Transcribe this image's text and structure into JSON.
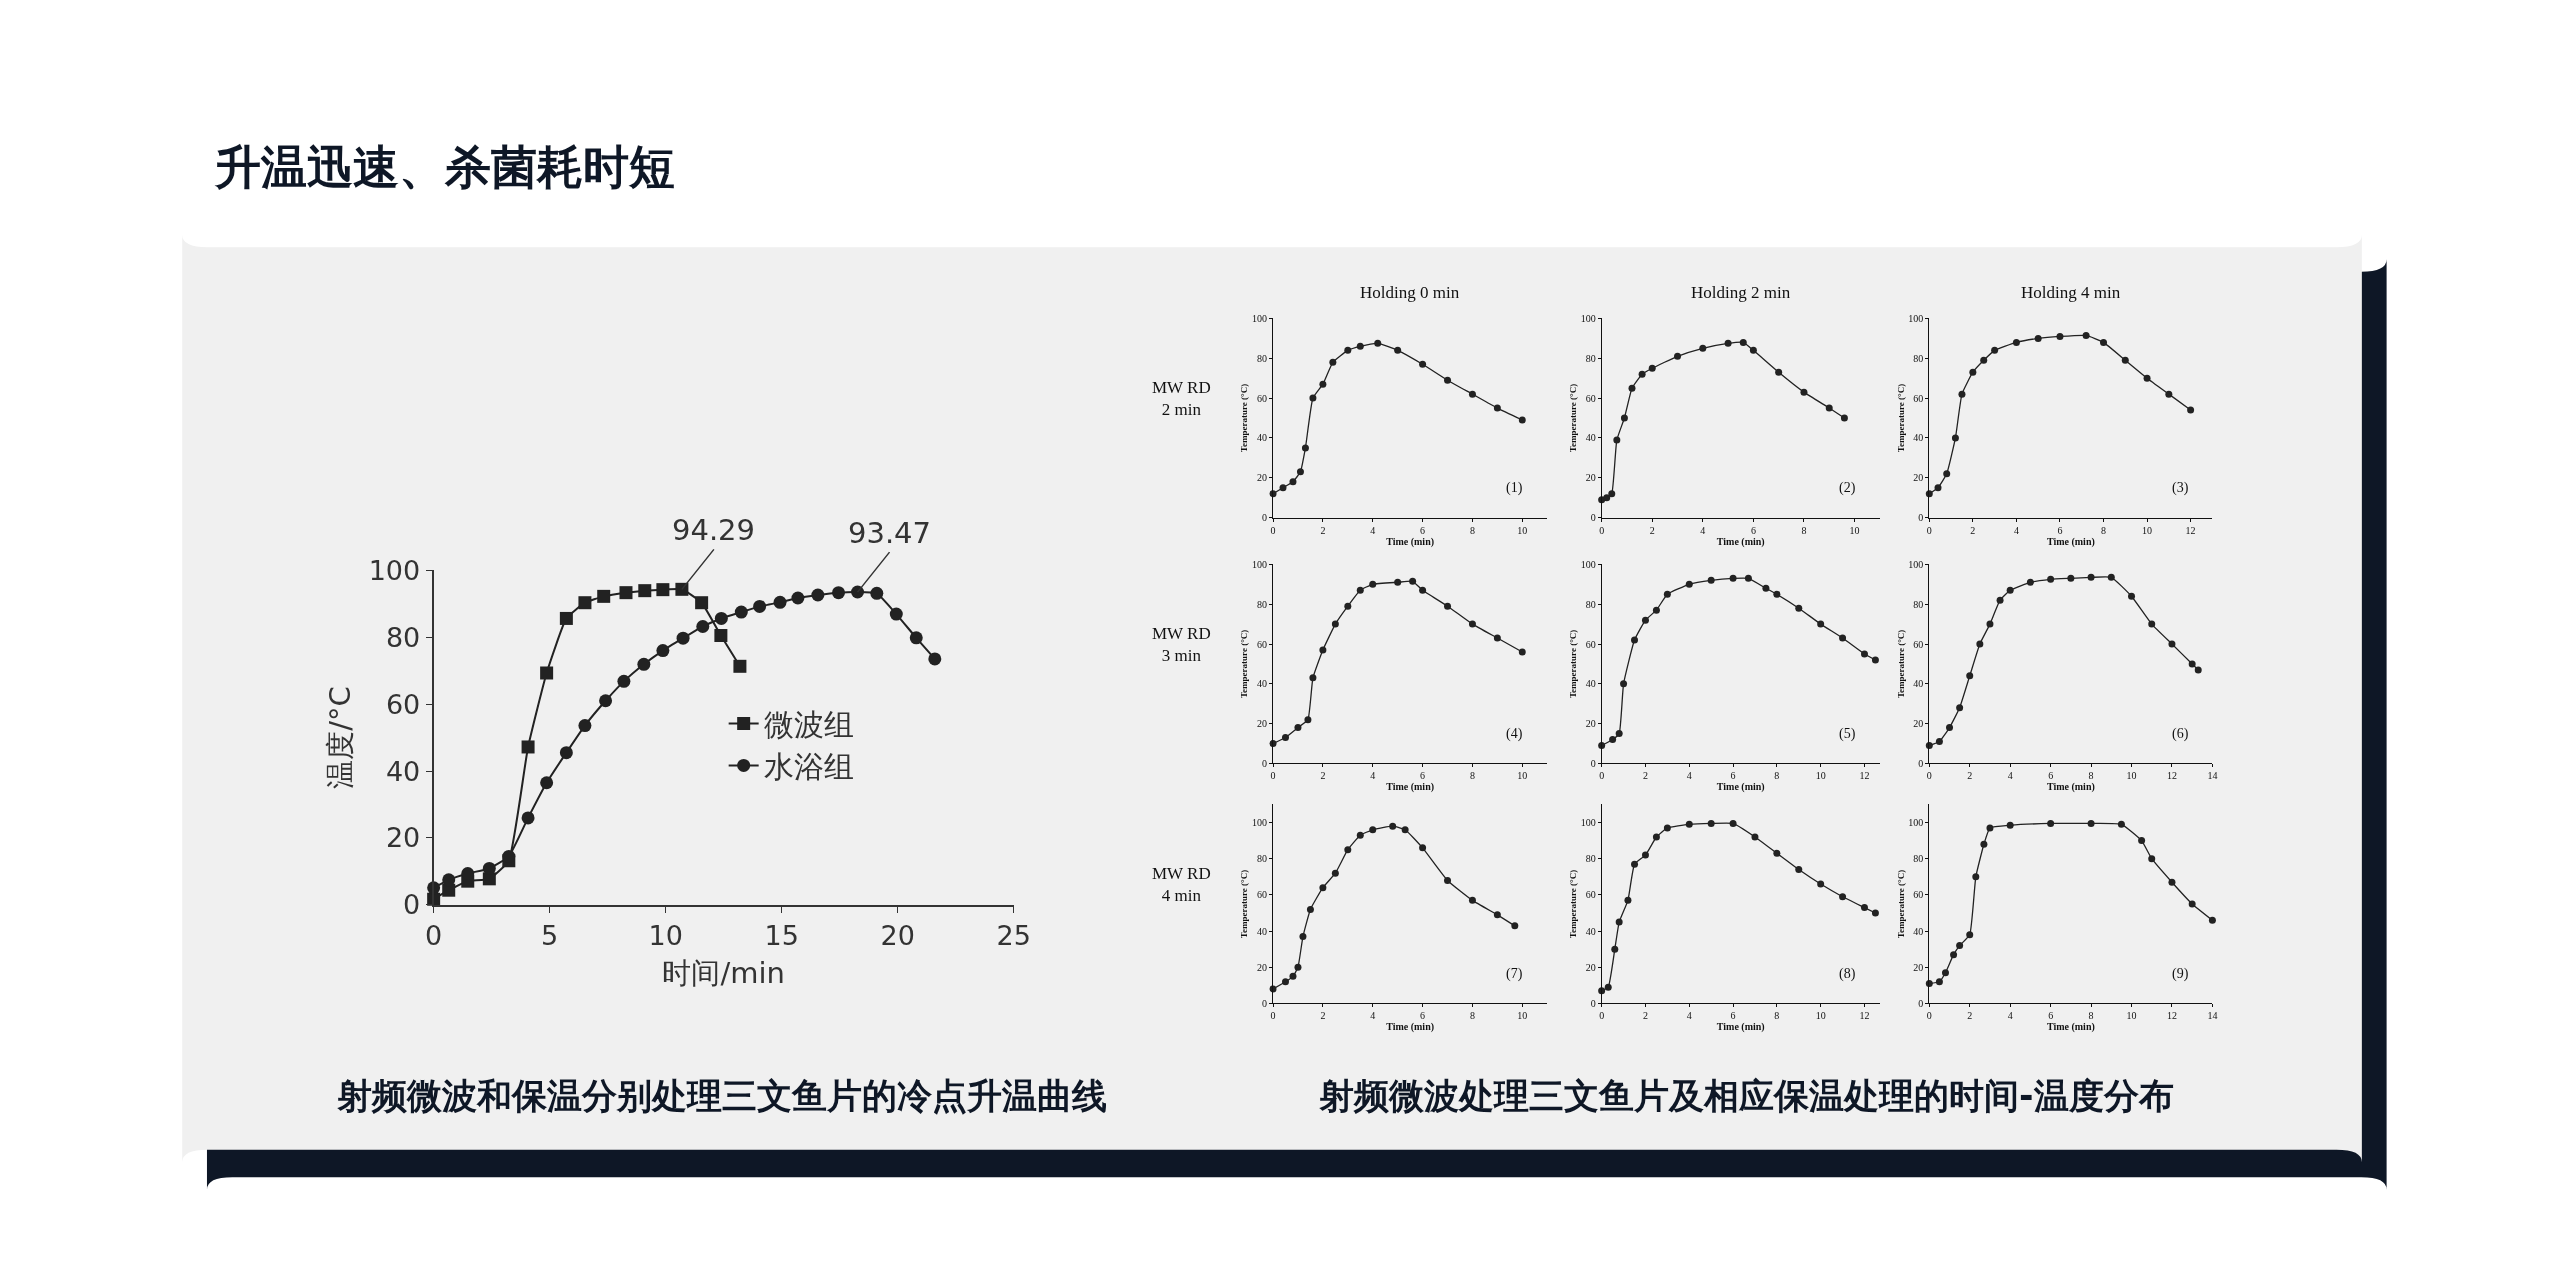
{
  "chart_data": [
    {
      "type": "line",
      "title": "升温迅速、杀菌耗时短",
      "xlabel": "时间/min",
      "ylabel": "温度/°C",
      "xlim": [
        0,
        25
      ],
      "ylim": [
        0,
        100
      ],
      "xticks": [
        0,
        5,
        10,
        15,
        20,
        25
      ],
      "yticks": [
        0,
        20,
        40,
        60,
        80,
        100
      ],
      "legend": "right",
      "annotations": [
        {
          "text": "94.29",
          "x": 10.7,
          "y": 94.29
        },
        {
          "text": "93.47",
          "x": 18.27,
          "y": 93.47
        },
        "射频微波和保温分别处理三文鱼片的冷点升温曲线"
      ],
      "series": [
        {
          "name": "微波组",
          "color": "#222222",
          "marker": "square",
          "x": [
            0,
            0.65,
            1.47,
            2.4,
            3.24,
            4.07,
            4.87,
            5.72,
            6.52,
            7.33,
            8.29,
            9.1,
            9.88,
            10.7,
            11.55,
            12.38,
            13.2
          ],
          "values": [
            1.7,
            4.4,
            7.1,
            7.8,
            13.2,
            47.2,
            69.3,
            85.6,
            90.3,
            92.2,
            93.3,
            93.9,
            94.2,
            94.3,
            90.3,
            80.5,
            71.3
          ]
        },
        {
          "name": "水浴组",
          "color": "#222222",
          "marker": "circle",
          "x": [
            0,
            0.65,
            1.47,
            2.4,
            3.24,
            4.07,
            4.87,
            5.72,
            6.52,
            7.41,
            8.2,
            9.06,
            9.88,
            10.75,
            11.6,
            12.4,
            13.26,
            14.05,
            14.93,
            15.7,
            16.56,
            17.45,
            18.27,
            19.1,
            19.94,
            20.8,
            21.6
          ],
          "values": [
            5.1,
            7.5,
            9.4,
            10.9,
            14.5,
            26,
            36.5,
            45.5,
            53.6,
            61,
            66.8,
            71.9,
            76,
            79.7,
            83.2,
            85.6,
            87.5,
            89.2,
            90.4,
            91.7,
            92.6,
            93.3,
            93.5,
            93.1,
            86.9,
            79.8,
            73.5
          ]
        }
      ]
    },
    {
      "type": "line",
      "title": "Holding 0 min",
      "xlabel": "Time (min)",
      "ylabel": "Temperature (°C)",
      "xlim": [
        0,
        11
      ],
      "ylim": [
        0,
        100
      ],
      "xticks": [
        0,
        2,
        4,
        6,
        8,
        10
      ],
      "yticks": [
        0,
        20,
        40,
        60,
        80,
        100
      ],
      "marker": "circle",
      "color": "#222222",
      "annotations": [
        "(1)",
        "MW RD\n2 min"
      ],
      "x": [
        0,
        0.4,
        0.8,
        1.1,
        1.3,
        1.6,
        2,
        2.4,
        3,
        3.5,
        4.2,
        5,
        6,
        7,
        8,
        9,
        10
      ],
      "values": [
        12,
        15,
        18,
        23,
        35,
        60,
        67,
        78,
        84,
        86,
        87.5,
        84,
        77,
        69,
        62,
        55,
        49
      ]
    },
    {
      "type": "line",
      "title": "Holding 2 min",
      "xlabel": "Time (min)",
      "ylabel": "Temperature (°C)",
      "xlim": [
        0,
        11
      ],
      "ylim": [
        0,
        100
      ],
      "xticks": [
        0,
        2,
        4,
        6,
        8,
        10
      ],
      "yticks": [
        0,
        20,
        40,
        60,
        80,
        100
      ],
      "marker": "circle",
      "color": "#222222",
      "annotations": [
        "(2)"
      ],
      "x": [
        0,
        0.2,
        0.4,
        0.6,
        0.9,
        1.2,
        1.6,
        2,
        3,
        4,
        5,
        5.6,
        6,
        7,
        8,
        9,
        9.6
      ],
      "values": [
        9,
        10,
        12,
        39,
        50,
        65,
        72,
        75,
        81,
        85,
        87.5,
        88,
        84,
        73,
        63,
        55,
        50
      ]
    },
    {
      "type": "line",
      "title": "Holding 4 min",
      "xlabel": "Time (min)",
      "ylabel": "Temperature (°C)",
      "xlim": [
        0,
        13
      ],
      "ylim": [
        0,
        100
      ],
      "xticks": [
        0,
        2,
        4,
        6,
        8,
        10,
        12
      ],
      "yticks": [
        0,
        20,
        40,
        60,
        80,
        100
      ],
      "marker": "circle",
      "color": "#222222",
      "annotations": [
        "(3)"
      ],
      "x": [
        0,
        0.4,
        0.8,
        1.2,
        1.5,
        2,
        2.5,
        3,
        4,
        5,
        6,
        7.2,
        8,
        9,
        10,
        11,
        12
      ],
      "values": [
        12,
        15,
        22,
        40,
        62,
        73,
        79,
        84,
        88,
        90,
        91,
        91.5,
        88,
        79,
        70,
        62,
        54
      ]
    },
    {
      "type": "line",
      "xlabel": "Time (min)",
      "ylabel": "Temperature (°C)",
      "xlim": [
        0,
        11
      ],
      "ylim": [
        0,
        100
      ],
      "xticks": [
        0,
        2,
        4,
        6,
        8,
        10
      ],
      "yticks": [
        0,
        20,
        40,
        60,
        80,
        100
      ],
      "marker": "circle",
      "color": "#222222",
      "annotations": [
        "(4)",
        "MW RD\n3 min"
      ],
      "x": [
        0,
        0.5,
        1,
        1.4,
        1.6,
        2,
        2.5,
        3,
        3.5,
        4,
        5,
        5.6,
        6,
        7,
        8,
        9,
        10
      ],
      "values": [
        10,
        13,
        18,
        22,
        43,
        57,
        70,
        79,
        87,
        90,
        91,
        91.5,
        87,
        79,
        70,
        63,
        56
      ]
    },
    {
      "type": "line",
      "xlabel": "Time (min)",
      "ylabel": "Temperature (°C)",
      "xlim": [
        0,
        12.7
      ],
      "ylim": [
        0,
        100
      ],
      "xticks": [
        0,
        2,
        4,
        6,
        8,
        10,
        12
      ],
      "yticks": [
        0,
        20,
        40,
        60,
        80,
        100
      ],
      "marker": "circle",
      "color": "#222222",
      "annotations": [
        "(5)"
      ],
      "x": [
        0,
        0.5,
        0.8,
        1,
        1.5,
        2,
        2.5,
        3,
        4,
        5,
        6,
        6.7,
        7.5,
        8,
        9,
        10,
        11,
        12,
        12.5
      ],
      "values": [
        9,
        12,
        15,
        40,
        62,
        72,
        77,
        85,
        90,
        92,
        93,
        93,
        88,
        85,
        78,
        70,
        63,
        55,
        52
      ]
    },
    {
      "type": "line",
      "xlabel": "Time (min)",
      "ylabel": "Temperature (°C)",
      "xlim": [
        0,
        14
      ],
      "ylim": [
        0,
        100
      ],
      "xticks": [
        0,
        2,
        4,
        6,
        8,
        10,
        12,
        14
      ],
      "yticks": [
        0,
        20,
        40,
        60,
        80,
        100
      ],
      "marker": "circle",
      "color": "#222222",
      "annotations": [
        "(6)"
      ],
      "x": [
        0,
        0.5,
        1,
        1.5,
        2,
        2.5,
        3,
        3.5,
        4,
        5,
        6,
        7,
        8,
        9,
        10,
        11,
        12,
        13,
        13.3
      ],
      "values": [
        9,
        11,
        18,
        28,
        44,
        60,
        70,
        82,
        87,
        91,
        92.5,
        93,
        93.5,
        93.5,
        84,
        70,
        60,
        50,
        47
      ]
    },
    {
      "type": "line",
      "xlabel": "Time (min)",
      "ylabel": "Temperature (°C)",
      "xlim": [
        0,
        11
      ],
      "ylim": [
        0,
        110
      ],
      "xticks": [
        0,
        2,
        4,
        6,
        8,
        10
      ],
      "yticks": [
        0,
        20,
        40,
        60,
        80,
        100
      ],
      "marker": "circle",
      "color": "#222222",
      "annotations": [
        "(7)",
        "MW RD\n4 min"
      ],
      "x": [
        0,
        0.5,
        0.8,
        1,
        1.2,
        1.5,
        2,
        2.5,
        3,
        3.5,
        4,
        4.8,
        5.3,
        6,
        7,
        8,
        9,
        9.7
      ],
      "values": [
        8,
        12,
        15,
        20,
        37,
        52,
        64,
        72,
        85,
        93,
        96,
        98,
        96,
        86,
        68,
        57,
        49,
        43
      ]
    },
    {
      "type": "line",
      "xlabel": "Time (min)",
      "ylabel": "Temperature (°C)",
      "xlim": [
        0,
        12.7
      ],
      "ylim": [
        0,
        110
      ],
      "xticks": [
        0,
        2,
        4,
        6,
        8,
        10,
        12
      ],
      "yticks": [
        0,
        20,
        40,
        60,
        80,
        100
      ],
      "marker": "circle",
      "color": "#222222",
      "annotations": [
        "(8)",
        "射频微波处理三文鱼片及相应保温处理的时间-温度分布"
      ],
      "x": [
        0,
        0.3,
        0.6,
        0.8,
        1.2,
        1.5,
        2,
        2.5,
        3,
        4,
        5,
        6,
        7,
        8,
        9,
        10,
        11,
        12,
        12.5
      ],
      "values": [
        7,
        9,
        30,
        45,
        57,
        77,
        82,
        92,
        97,
        99,
        99.5,
        99.5,
        92,
        83,
        74,
        66,
        59,
        53,
        50
      ]
    },
    {
      "type": "line",
      "xlabel": "Time (min)",
      "ylabel": "Temperature (°C)",
      "xlim": [
        0,
        14
      ],
      "ylim": [
        0,
        110
      ],
      "xticks": [
        0,
        2,
        4,
        6,
        8,
        10,
        12,
        14
      ],
      "yticks": [
        0,
        20,
        40,
        60,
        80,
        100
      ],
      "marker": "circle",
      "color": "#222222",
      "annotations": [
        "(9)"
      ],
      "x": [
        0,
        0.5,
        0.8,
        1.2,
        1.5,
        2,
        2.3,
        2.7,
        3,
        4,
        6,
        8,
        9.5,
        10.5,
        11,
        12,
        13,
        14
      ],
      "values": [
        11,
        12,
        17,
        27,
        32,
        38,
        70,
        88,
        97,
        98.5,
        99.5,
        99.5,
        99,
        90,
        80,
        67,
        55,
        46
      ]
    }
  ]
}
